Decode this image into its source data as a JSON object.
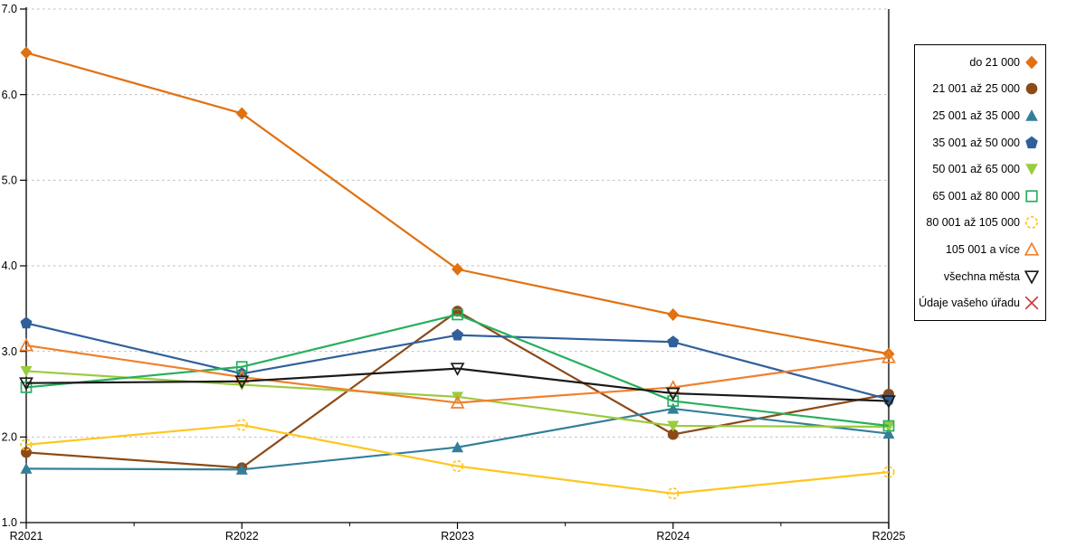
{
  "chart_data": {
    "type": "line",
    "title": "",
    "xlabel": "",
    "ylabel": "",
    "x": [
      "R2021",
      "R2022",
      "R2023",
      "R2024",
      "R2025"
    ],
    "ylim": [
      1.0,
      7.0
    ],
    "yticks": [
      "1.0",
      "2.0",
      "3.0",
      "4.0",
      "5.0",
      "6.0",
      "7.0"
    ],
    "grid": "horizontal-dotted",
    "legend_position": "right-outside",
    "series": [
      {
        "name": "do 21 000",
        "marker": "diamond",
        "color": "#E1700F",
        "values": [
          6.49,
          5.78,
          3.96,
          3.43,
          2.97
        ]
      },
      {
        "name": "21 001 až 25 000",
        "marker": "circle",
        "color": "#8C4A17",
        "values": [
          1.82,
          1.64,
          3.47,
          2.03,
          2.5
        ]
      },
      {
        "name": "25 001 až 35 000",
        "marker": "triangle-up",
        "color": "#337F99",
        "values": [
          1.63,
          1.62,
          1.88,
          2.33,
          2.04
        ]
      },
      {
        "name": "35 001 až 50 000",
        "marker": "pentagon",
        "color": "#30609B",
        "values": [
          3.33,
          2.74,
          3.19,
          3.11,
          2.44
        ]
      },
      {
        "name": "50 001 až 65 000",
        "marker": "triangle-down",
        "color": "#9BCB3E",
        "values": [
          2.77,
          2.61,
          2.47,
          2.13,
          2.12
        ]
      },
      {
        "name": "65 001 až 80 000",
        "marker": "square-open",
        "color": "#26AF5E",
        "values": [
          2.58,
          2.82,
          3.43,
          2.42,
          2.13
        ]
      },
      {
        "name": "80 001 až 105 000",
        "marker": "circle-open-dashed",
        "color": "#FFC61E",
        "values": [
          1.91,
          2.14,
          1.66,
          1.34,
          1.59
        ]
      },
      {
        "name": "105 001 a více",
        "marker": "triangle-up-open",
        "color": "#F0802C",
        "values": [
          3.07,
          2.7,
          2.4,
          2.58,
          2.93
        ]
      },
      {
        "name": "všechna města",
        "marker": "triangle-down-open",
        "color": "#1A1A1A",
        "values": [
          2.63,
          2.65,
          2.8,
          2.51,
          2.42
        ]
      },
      {
        "name": "Údaje vašeho úřadu",
        "marker": "x",
        "color": "#CC3333",
        "values": []
      }
    ]
  }
}
